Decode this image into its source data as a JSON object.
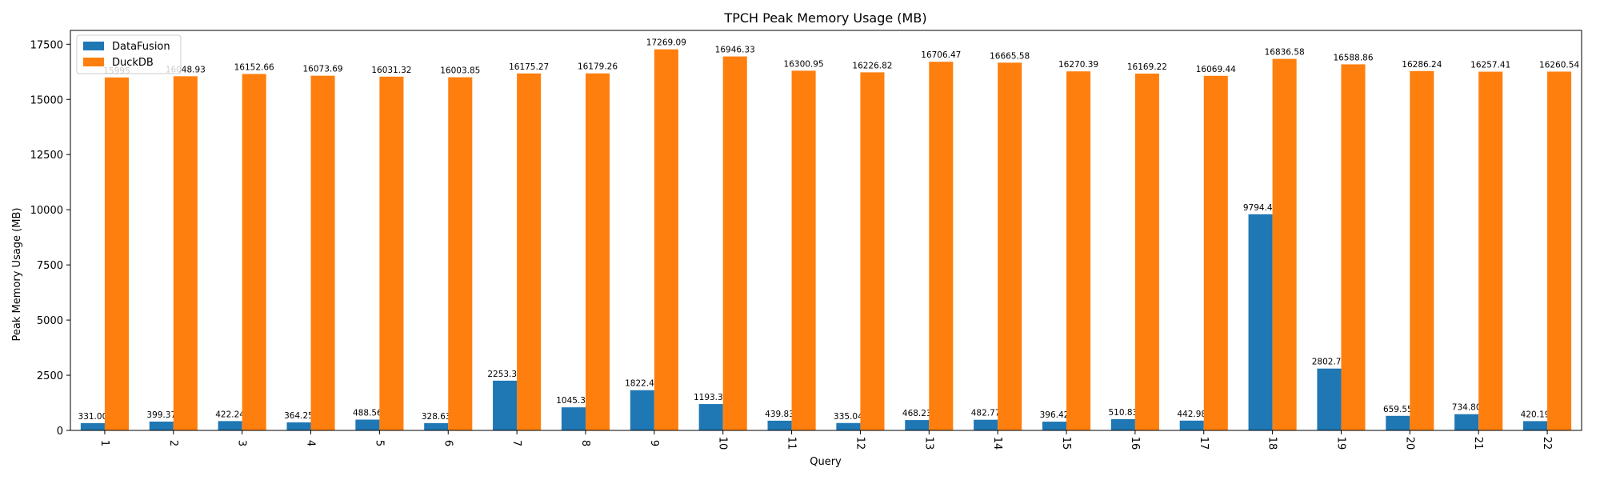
{
  "chart_data": {
    "type": "bar",
    "title": "TPCH Peak Memory Usage (MB)",
    "xlabel": "Query",
    "ylabel": "Peak Memory Usage (MB)",
    "ylim": [
      0,
      18127
    ],
    "yticks": [
      0,
      2500,
      5000,
      7500,
      10000,
      12500,
      15000,
      17500
    ],
    "grid": false,
    "legend_position": "top-left",
    "categories": [
      "1",
      "2",
      "3",
      "4",
      "5",
      "6",
      "7",
      "8",
      "9",
      "10",
      "11",
      "12",
      "13",
      "14",
      "15",
      "16",
      "17",
      "18",
      "19",
      "20",
      "21",
      "22"
    ],
    "series": [
      {
        "name": "DataFusion",
        "color": "#1f77b4",
        "values": [
          331.0,
          399.37,
          422.24,
          364.25,
          488.56,
          328.63,
          2253.33,
          1045.34,
          1822.47,
          1193.36,
          439.83,
          335.04,
          468.23,
          482.77,
          396.42,
          510.83,
          442.98,
          9794.47,
          2802.7,
          659.55,
          734.8,
          420.19
        ],
        "labels": [
          "331.00",
          "399.37",
          "422.24",
          "364.25",
          "488.56",
          "328.63",
          "2253.33",
          "1045.34",
          "1822.47",
          "1193.36",
          "439.83",
          "335.04",
          "468.23",
          "482.77",
          "396.42",
          "510.83",
          "442.98",
          "9794.47",
          "2802.70",
          "659.55",
          "734.80",
          "420.19"
        ]
      },
      {
        "name": "DuckDB",
        "color": "#ff7f0e",
        "values": [
          15995,
          16048.93,
          16152.66,
          16073.69,
          16031.32,
          16003.85,
          16175.27,
          16179.26,
          17269.09,
          16946.33,
          16300.95,
          16226.82,
          16706.47,
          16665.58,
          16270.39,
          16169.22,
          16069.44,
          16836.58,
          16588.86,
          16286.24,
          16257.41,
          16260.54
        ],
        "labels": [
          "15995",
          "16048.93",
          "16152.66",
          "16073.69",
          "16031.32",
          "16003.85",
          "16175.27",
          "16179.26",
          "17269.09",
          "16946.33",
          "16300.95",
          "16226.82",
          "16706.47",
          "16665.58",
          "16270.39",
          "16169.22",
          "16069.44",
          "16836.58",
          "16588.86",
          "16286.24",
          "16257.41",
          "16260.54"
        ]
      }
    ]
  }
}
